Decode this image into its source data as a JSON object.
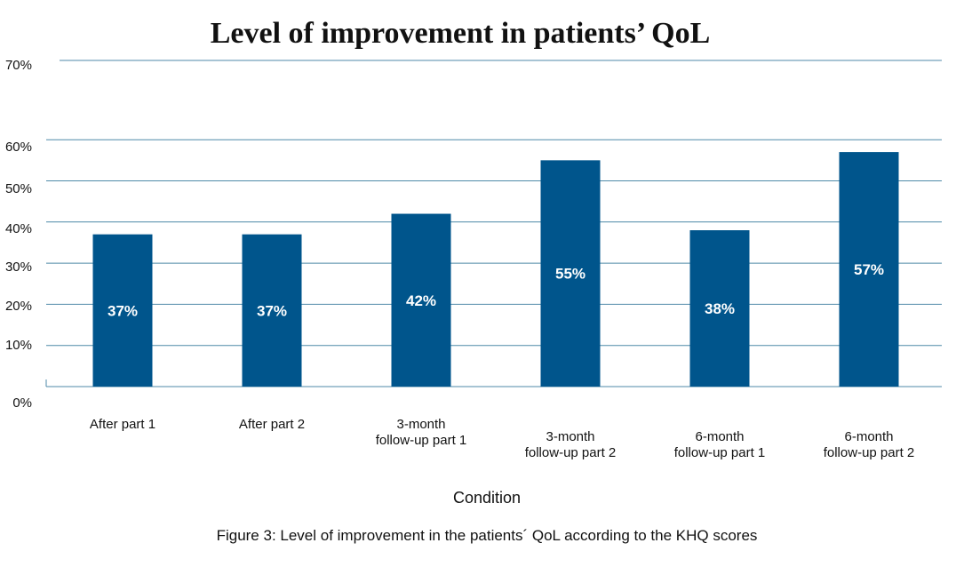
{
  "chart_data": {
    "type": "bar",
    "title": "Level of improvement in patients’ QoL",
    "xlabel": "Condition",
    "ylabel": "",
    "categories": [
      [
        "After part 1"
      ],
      [
        "After part 2"
      ],
      [
        "3-month",
        "follow-up part 1"
      ],
      [
        "3-month",
        "follow-up part 2"
      ],
      [
        "6-month",
        "follow-up part 1"
      ],
      [
        "6-month",
        "follow-up part 2"
      ]
    ],
    "values": [
      37,
      37,
      42,
      55,
      38,
      57
    ],
    "data_labels": [
      "37%",
      "37%",
      "42%",
      "55%",
      "38%",
      "57%"
    ],
    "yticks": [
      {
        "value": 0,
        "label": "0%"
      },
      {
        "value": 10,
        "label": "10%"
      },
      {
        "value": 20,
        "label": "20%"
      },
      {
        "value": 30,
        "label": "30%"
      },
      {
        "value": 40,
        "label": "40%"
      },
      {
        "value": 50,
        "label": "50%"
      },
      {
        "value": 60,
        "label": "60%"
      },
      {
        "value": 70,
        "label": "70%"
      }
    ],
    "ylim": [
      0,
      70
    ],
    "grid": true,
    "bar_color": "#00558c",
    "grid_color": "#4f8aa8"
  },
  "caption": "Figure 3: Level of improvement in the patients´ QoL according to the KHQ scores"
}
